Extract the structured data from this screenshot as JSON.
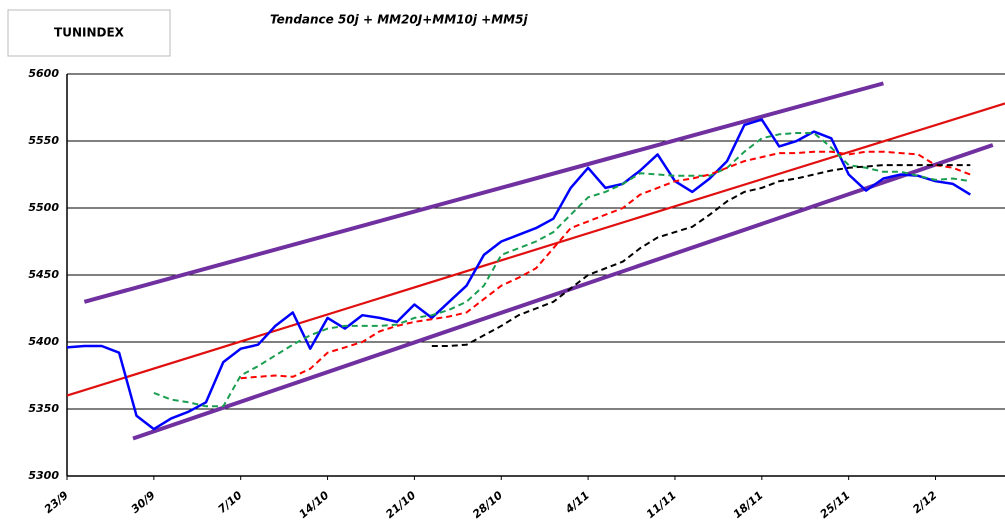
{
  "chart_data": {
    "type": "line",
    "title": "Tendance 50j + MM20J+MM10j +MM5j",
    "label": "TUNINDEX",
    "categories": [
      "23/9",
      null,
      null,
      null,
      null,
      "30/9",
      null,
      null,
      null,
      null,
      "7/10",
      null,
      null,
      null,
      null,
      "14/10",
      null,
      null,
      null,
      null,
      "21/10",
      null,
      null,
      null,
      null,
      "28/10",
      null,
      null,
      null,
      null,
      "4/11",
      null,
      null,
      null,
      null,
      "11/11",
      null,
      null,
      null,
      null,
      "18/11",
      null,
      null,
      null,
      null,
      "25/11",
      null,
      null,
      null,
      null,
      "2/12",
      null,
      null,
      null,
      null
    ],
    "ylim": [
      5300,
      5600
    ],
    "yticks": [
      5300,
      5350,
      5400,
      5450,
      5500,
      5550,
      5600
    ],
    "grid": true,
    "series": [
      {
        "color": "#0000ff",
        "dash": false,
        "values": [
          5396,
          5397,
          5397,
          5392,
          5345,
          5335,
          5343,
          5348,
          5355,
          5385,
          5395,
          5398,
          5412,
          5422,
          5395,
          5418,
          5410,
          5420,
          5418,
          5415,
          5428,
          5418,
          5430,
          5442,
          5465,
          5475,
          5480,
          5485,
          5492,
          5515,
          5530,
          5515,
          5518,
          5528,
          5540,
          5520,
          5512,
          5522,
          5535,
          5562,
          5566,
          5546,
          5550,
          5557,
          5552,
          5525,
          5513,
          5522,
          5525,
          5524,
          5520,
          5518,
          5510,
          null,
          null
        ]
      },
      {
        "color": "#1a9e50",
        "dash": true,
        "values": [
          null,
          null,
          null,
          null,
          null,
          5362,
          5357,
          5355,
          5352,
          5352,
          5375,
          5382,
          5390,
          5398,
          5405,
          5410,
          5412,
          5412,
          5412,
          5413,
          5418,
          5420,
          5424,
          5430,
          5442,
          5465,
          5470,
          5475,
          5482,
          5495,
          5508,
          5512,
          5518,
          5526,
          5525,
          5524,
          5524,
          5524,
          5530,
          5542,
          5552,
          5555,
          5556,
          5556,
          5545,
          5532,
          5530,
          5527,
          5527,
          5524,
          5521,
          5522,
          5520,
          null,
          null
        ]
      },
      {
        "color": "#ff0000",
        "dash": true,
        "values": [
          null,
          null,
          null,
          null,
          null,
          null,
          null,
          null,
          null,
          null,
          5373,
          5374,
          5375,
          5374,
          5380,
          5392,
          5396,
          5400,
          5408,
          5412,
          5415,
          5417,
          5419,
          5422,
          5432,
          5442,
          5448,
          5455,
          5470,
          5485,
          5490,
          5495,
          5500,
          5510,
          5515,
          5520,
          5522,
          5525,
          5530,
          5535,
          5538,
          5541,
          5541,
          5542,
          5542,
          5540,
          5542,
          5542,
          5541,
          5540,
          5532,
          5530,
          5525,
          null,
          null
        ]
      },
      {
        "color": "#000000",
        "dash": true,
        "values": [
          null,
          null,
          null,
          null,
          null,
          null,
          null,
          null,
          null,
          null,
          null,
          null,
          null,
          null,
          null,
          null,
          null,
          null,
          null,
          null,
          null,
          5397,
          5397,
          5398,
          5405,
          5412,
          5420,
          5425,
          5430,
          5440,
          5450,
          5455,
          5460,
          5470,
          5478,
          5482,
          5486,
          5495,
          5505,
          5512,
          5515,
          5520,
          5522,
          5525,
          5528,
          5530,
          5531,
          5532,
          5532,
          5532,
          5532,
          5532,
          5532,
          null,
          null
        ]
      }
    ],
    "trend_lines": [
      {
        "color": "#7030a0",
        "x": [
          1,
          47
        ],
        "values": [
          5430,
          5593
        ]
      },
      {
        "color": "#7030a0",
        "x": [
          3.8,
          53.3
        ],
        "values": [
          5328,
          5547
        ]
      },
      {
        "color": "#e01010",
        "x": [
          0,
          54
        ],
        "values": [
          5360,
          5578
        ]
      }
    ]
  }
}
